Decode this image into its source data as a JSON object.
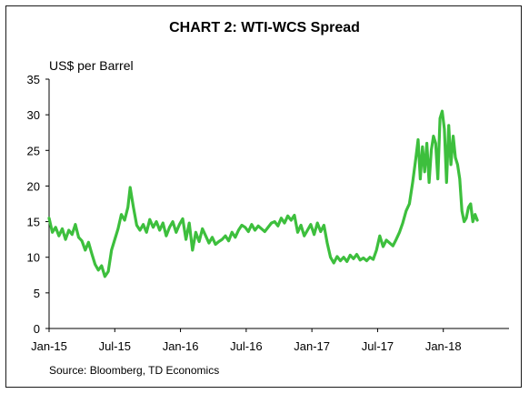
{
  "chart_data": {
    "type": "line",
    "title": "CHART 2: WTI-WCS Spread",
    "ylabel": "US$ per Barrel",
    "xlabel": "",
    "source": "Source: Bloomberg, TD Economics",
    "ylim": [
      0,
      35
    ],
    "yticks": [
      0,
      5,
      10,
      15,
      20,
      25,
      30,
      35
    ],
    "xlim": [
      0,
      42
    ],
    "xticks": [
      {
        "label": "Jan-15",
        "t": 0
      },
      {
        "label": "Jul-15",
        "t": 6
      },
      {
        "label": "Jan-16",
        "t": 12
      },
      {
        "label": "Jul-16",
        "t": 18
      },
      {
        "label": "Jan-17",
        "t": 24
      },
      {
        "label": "Jul-17",
        "t": 30
      },
      {
        "label": "Jan-18",
        "t": 36
      }
    ],
    "grid": false,
    "line_color": "#3dbf3d",
    "series": [
      {
        "name": "",
        "points": [
          [
            0.0,
            15.5
          ],
          [
            0.3,
            13.5
          ],
          [
            0.6,
            14.2
          ],
          [
            0.9,
            13.0
          ],
          [
            1.2,
            14.0
          ],
          [
            1.5,
            12.5
          ],
          [
            1.8,
            13.8
          ],
          [
            2.1,
            13.2
          ],
          [
            2.4,
            14.6
          ],
          [
            2.7,
            12.8
          ],
          [
            3.0,
            12.3
          ],
          [
            3.3,
            11.0
          ],
          [
            3.6,
            12.1
          ],
          [
            3.9,
            10.5
          ],
          [
            4.2,
            9.0
          ],
          [
            4.5,
            8.2
          ],
          [
            4.8,
            8.8
          ],
          [
            5.1,
            7.3
          ],
          [
            5.4,
            8.0
          ],
          [
            5.7,
            11.0
          ],
          [
            6.0,
            12.5
          ],
          [
            6.3,
            14.0
          ],
          [
            6.6,
            16.0
          ],
          [
            6.9,
            15.2
          ],
          [
            7.2,
            17.0
          ],
          [
            7.4,
            19.8
          ],
          [
            7.7,
            17.0
          ],
          [
            8.0,
            14.5
          ],
          [
            8.3,
            13.8
          ],
          [
            8.6,
            14.6
          ],
          [
            8.9,
            13.5
          ],
          [
            9.2,
            15.3
          ],
          [
            9.5,
            14.2
          ],
          [
            9.8,
            15.0
          ],
          [
            10.1,
            13.8
          ],
          [
            10.4,
            14.8
          ],
          [
            10.7,
            13.0
          ],
          [
            11.0,
            14.2
          ],
          [
            11.3,
            15.0
          ],
          [
            11.6,
            13.5
          ],
          [
            11.9,
            14.6
          ],
          [
            12.2,
            15.4
          ],
          [
            12.5,
            12.5
          ],
          [
            12.8,
            14.8
          ],
          [
            13.1,
            11.0
          ],
          [
            13.4,
            13.5
          ],
          [
            13.7,
            12.2
          ],
          [
            14.0,
            14.0
          ],
          [
            14.3,
            13.0
          ],
          [
            14.6,
            12.0
          ],
          [
            14.9,
            12.8
          ],
          [
            15.2,
            11.8
          ],
          [
            15.5,
            12.2
          ],
          [
            15.8,
            12.5
          ],
          [
            16.1,
            13.0
          ],
          [
            16.4,
            12.3
          ],
          [
            16.7,
            13.5
          ],
          [
            17.0,
            12.8
          ],
          [
            17.3,
            13.8
          ],
          [
            17.6,
            14.5
          ],
          [
            17.9,
            14.2
          ],
          [
            18.2,
            13.6
          ],
          [
            18.5,
            14.6
          ],
          [
            18.8,
            13.8
          ],
          [
            19.1,
            14.4
          ],
          [
            19.4,
            14.0
          ],
          [
            19.7,
            13.6
          ],
          [
            20.0,
            14.2
          ],
          [
            20.3,
            14.8
          ],
          [
            20.6,
            15.0
          ],
          [
            20.9,
            14.4
          ],
          [
            21.2,
            15.5
          ],
          [
            21.5,
            14.8
          ],
          [
            21.8,
            15.8
          ],
          [
            22.1,
            15.2
          ],
          [
            22.4,
            15.9
          ],
          [
            22.7,
            13.5
          ],
          [
            23.0,
            14.5
          ],
          [
            23.3,
            13.0
          ],
          [
            23.6,
            13.8
          ],
          [
            23.9,
            14.6
          ],
          [
            24.2,
            13.2
          ],
          [
            24.5,
            14.8
          ],
          [
            24.8,
            13.6
          ],
          [
            25.1,
            14.5
          ],
          [
            25.4,
            12.0
          ],
          [
            25.7,
            10.0
          ],
          [
            26.0,
            9.2
          ],
          [
            26.3,
            10.1
          ],
          [
            26.6,
            9.5
          ],
          [
            26.9,
            10.0
          ],
          [
            27.2,
            9.4
          ],
          [
            27.5,
            10.3
          ],
          [
            27.8,
            9.8
          ],
          [
            28.1,
            10.4
          ],
          [
            28.4,
            9.6
          ],
          [
            28.7,
            9.9
          ],
          [
            29.0,
            9.5
          ],
          [
            29.3,
            10.0
          ],
          [
            29.6,
            9.7
          ],
          [
            29.9,
            11.0
          ],
          [
            30.2,
            13.0
          ],
          [
            30.5,
            11.5
          ],
          [
            30.8,
            12.4
          ],
          [
            31.1,
            12.0
          ],
          [
            31.4,
            11.6
          ],
          [
            31.7,
            12.5
          ],
          [
            32.0,
            13.5
          ],
          [
            32.3,
            14.8
          ],
          [
            32.6,
            16.5
          ],
          [
            32.9,
            17.5
          ],
          [
            33.2,
            20.5
          ],
          [
            33.5,
            24.0
          ],
          [
            33.7,
            26.5
          ],
          [
            33.9,
            21.0
          ],
          [
            34.1,
            25.5
          ],
          [
            34.3,
            22.0
          ],
          [
            34.5,
            26.0
          ],
          [
            34.7,
            20.5
          ],
          [
            34.9,
            25.0
          ],
          [
            35.1,
            27.0
          ],
          [
            35.3,
            26.0
          ],
          [
            35.5,
            21.0
          ],
          [
            35.7,
            29.5
          ],
          [
            35.9,
            30.5
          ],
          [
            36.1,
            28.0
          ],
          [
            36.3,
            20.5
          ],
          [
            36.5,
            28.5
          ],
          [
            36.7,
            23.0
          ],
          [
            36.9,
            27.0
          ],
          [
            37.1,
            24.0
          ],
          [
            37.3,
            23.0
          ],
          [
            37.5,
            21.0
          ],
          [
            37.7,
            16.5
          ],
          [
            37.9,
            15.0
          ],
          [
            38.1,
            15.5
          ],
          [
            38.3,
            17.0
          ],
          [
            38.5,
            17.5
          ],
          [
            38.7,
            15.0
          ],
          [
            38.9,
            16.0
          ],
          [
            39.1,
            15.2
          ]
        ]
      }
    ]
  }
}
